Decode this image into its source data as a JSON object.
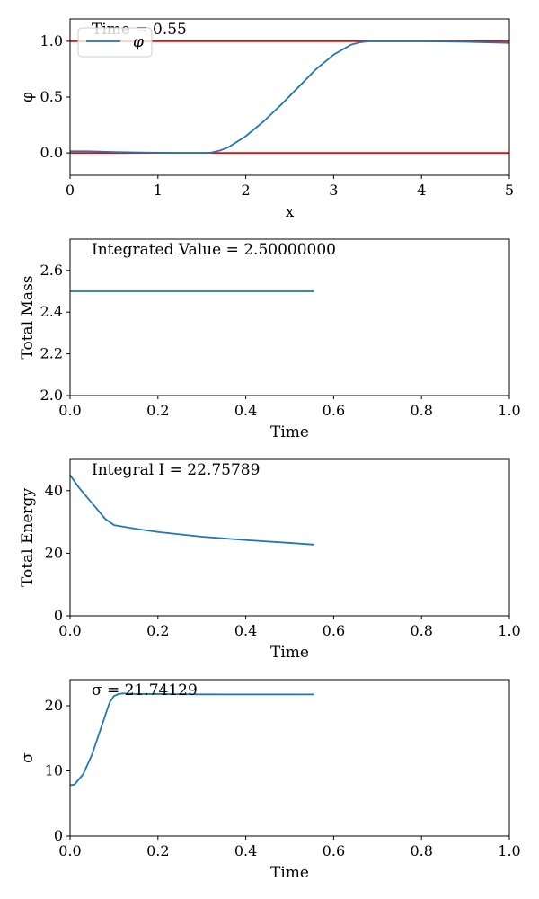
{
  "chart_data": [
    {
      "type": "line",
      "xlabel": "x",
      "ylabel": "φ",
      "xlim": [
        0,
        5
      ],
      "ylim": [
        -0.2,
        1.2
      ],
      "xticks": [
        0,
        1,
        2,
        3,
        4,
        5
      ],
      "xtick_labels": [
        "0",
        "1",
        "2",
        "3",
        "4",
        "5"
      ],
      "yticks": [
        0.0,
        0.5,
        1.0
      ],
      "ytick_labels": [
        "0.0",
        "0.5",
        "1.0"
      ],
      "annotation": "Time = 0.55",
      "legend": {
        "placement": "top-left",
        "entries": [
          "φ"
        ]
      },
      "series": [
        {
          "name": "φ",
          "color": "#1f77b4",
          "x": [
            0,
            0.2,
            0.5,
            0.8,
            1.0,
            1.3,
            1.5,
            1.6,
            1.7,
            1.8,
            2.0,
            2.2,
            2.4,
            2.6,
            2.8,
            3.0,
            3.2,
            3.3,
            3.4,
            3.6,
            3.8,
            4.0,
            4.5,
            5.0
          ],
          "y": [
            0.015,
            0.015,
            0.008,
            0.004,
            0.002,
            0.0,
            0.0,
            0.002,
            0.02,
            0.05,
            0.15,
            0.28,
            0.43,
            0.59,
            0.75,
            0.88,
            0.97,
            0.99,
            1.0,
            1.0,
            1.0,
            1.0,
            0.995,
            0.985
          ]
        }
      ],
      "hlines": [
        {
          "y": 1.0,
          "color": "#ff0000"
        },
        {
          "y": 0.0,
          "color": "#ff0000"
        }
      ]
    },
    {
      "type": "line",
      "xlabel": "Time",
      "ylabel": "Total Mass",
      "xlim": [
        0,
        1
      ],
      "ylim": [
        2.0,
        2.75
      ],
      "xticks": [
        0,
        0.2,
        0.4,
        0.6,
        0.8,
        1.0
      ],
      "xtick_labels": [
        "0.0",
        "0.2",
        "0.4",
        "0.6",
        "0.8",
        "1.0"
      ],
      "yticks": [
        2.0,
        2.2,
        2.4,
        2.6
      ],
      "ytick_labels": [
        "2.0",
        "2.2",
        "2.4",
        "2.6"
      ],
      "annotation": "Integrated Value = 2.50000000",
      "series": [
        {
          "color": "#1f77b4",
          "x": [
            0,
            0.555
          ],
          "y": [
            2.5,
            2.5
          ]
        }
      ]
    },
    {
      "type": "line",
      "xlabel": "Time",
      "ylabel": "Total Energy",
      "xlim": [
        0,
        1
      ],
      "ylim": [
        0,
        50
      ],
      "xticks": [
        0,
        0.2,
        0.4,
        0.6,
        0.8,
        1.0
      ],
      "xtick_labels": [
        "0.0",
        "0.2",
        "0.4",
        "0.6",
        "0.8",
        "1.0"
      ],
      "yticks": [
        0,
        20,
        40
      ],
      "ytick_labels": [
        "0",
        "20",
        "40"
      ],
      "annotation": "Integral I = 22.75789",
      "series": [
        {
          "color": "#1f77b4",
          "x": [
            0,
            0.02,
            0.05,
            0.08,
            0.1,
            0.15,
            0.2,
            0.3,
            0.4,
            0.5,
            0.555
          ],
          "y": [
            45,
            41,
            36,
            31,
            29,
            27.8,
            26.8,
            25.3,
            24.2,
            23.3,
            22.76
          ]
        }
      ]
    },
    {
      "type": "line",
      "xlabel": "Time",
      "ylabel": "σ",
      "xlim": [
        0,
        1
      ],
      "ylim": [
        0,
        24
      ],
      "xticks": [
        0,
        0.2,
        0.4,
        0.6,
        0.8,
        1.0
      ],
      "xtick_labels": [
        "0.0",
        "0.2",
        "0.4",
        "0.6",
        "0.8",
        "1.0"
      ],
      "yticks": [
        0,
        10,
        20
      ],
      "ytick_labels": [
        "0",
        "10",
        "20"
      ],
      "annotation": "σ = 21.74129",
      "series": [
        {
          "color": "#1f77b4",
          "x": [
            0,
            0.01,
            0.03,
            0.05,
            0.07,
            0.09,
            0.1,
            0.11,
            0.12,
            0.15,
            0.2,
            0.3,
            0.4,
            0.5,
            0.555
          ],
          "y": [
            7.8,
            7.9,
            9.5,
            12.5,
            16.5,
            20.5,
            21.5,
            21.8,
            21.9,
            21.8,
            21.8,
            21.75,
            21.74,
            21.74,
            21.74
          ]
        }
      ]
    }
  ]
}
